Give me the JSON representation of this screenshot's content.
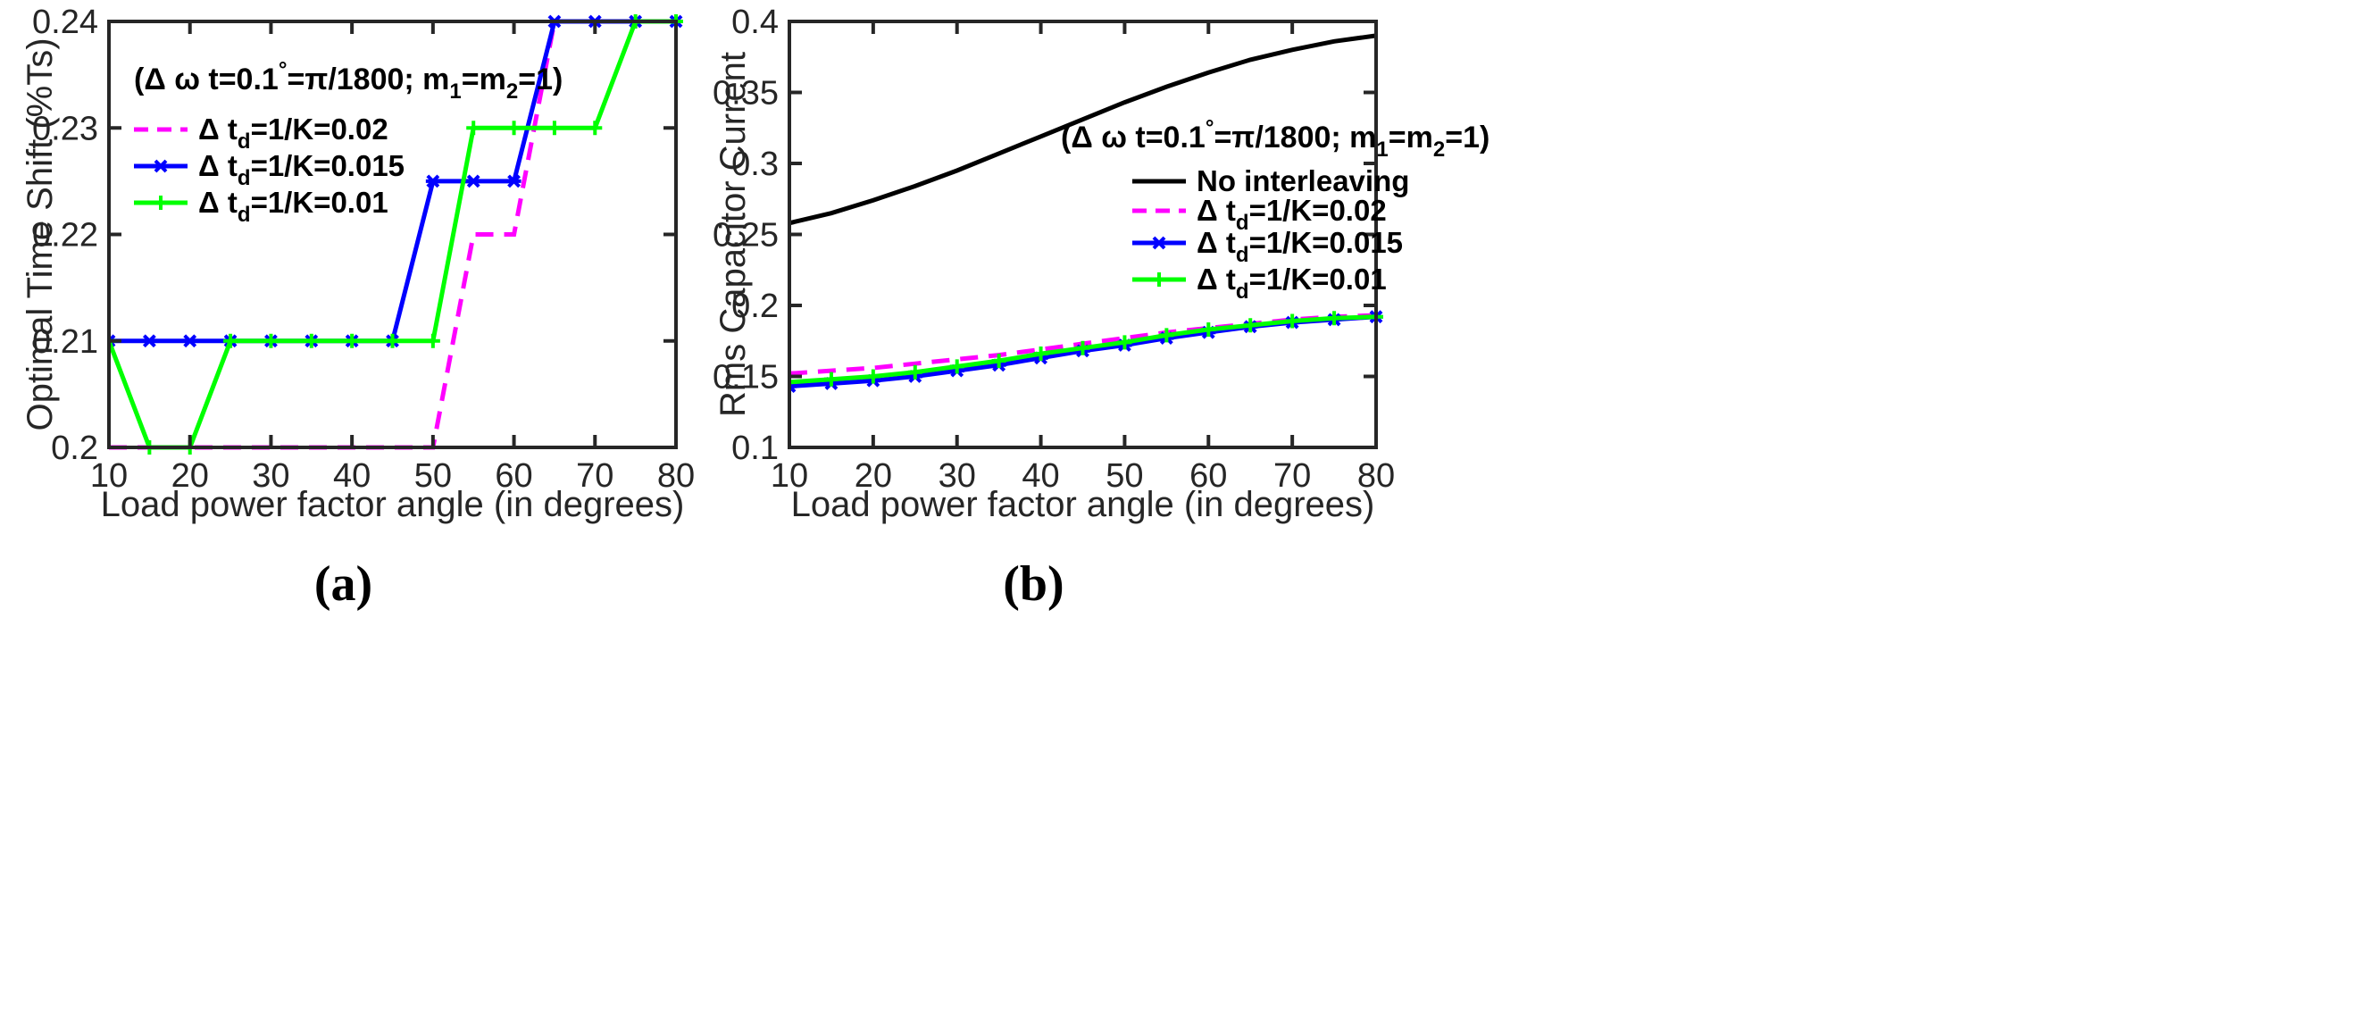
{
  "chart_data": [
    {
      "type": "line",
      "panel_label": "(a)",
      "title": "",
      "xlabel": "Load power factor angle (in degrees)",
      "ylabel": "Optimal Time Shift (%Ts)",
      "xlim": [
        10,
        80
      ],
      "ylim": [
        0.2,
        0.24
      ],
      "xticks": [
        10,
        20,
        30,
        40,
        50,
        60,
        70,
        80
      ],
      "yticks": [
        0.2,
        0.21,
        0.22,
        0.23,
        0.24
      ],
      "ytick_labels": [
        "0.2",
        "0.21",
        "0.22",
        "0.23",
        "0.24"
      ],
      "legend_title": {
        "pre": "(Δ ω t=0.1",
        "deg": "°",
        "mid": "=π/1800; m",
        "s1": "1",
        "eq": "=m",
        "s2": "2",
        "post": "=1)"
      },
      "legend_position": "top-left",
      "x": [
        10,
        15,
        20,
        25,
        30,
        35,
        40,
        45,
        50,
        55,
        60,
        65,
        70,
        75,
        80
      ],
      "series": [
        {
          "name": "Δ t_d=1/K=0.02",
          "label": {
            "pre": "Δ t",
            "sub": "d",
            "post": "=1/K=0.02"
          },
          "color": "#ff00ff",
          "style": "dashed",
          "marker": "none",
          "step": true,
          "values": [
            0.2,
            0.2,
            0.2,
            0.2,
            0.2,
            0.2,
            0.2,
            0.2,
            0.2,
            0.22,
            0.22,
            0.24,
            0.24,
            0.24,
            0.24
          ]
        },
        {
          "name": "Δ t_d=1/K=0.015",
          "label": {
            "pre": "Δ t",
            "sub": "d",
            "post": "=1/K=0.015"
          },
          "color": "#0000ff",
          "style": "solid",
          "marker": "star",
          "step": true,
          "values": [
            0.21,
            0.21,
            0.21,
            0.21,
            0.21,
            0.21,
            0.21,
            0.21,
            0.225,
            0.225,
            0.225,
            0.24,
            0.24,
            0.24,
            0.24
          ]
        },
        {
          "name": "Δ t_d=1/K=0.01",
          "label": {
            "pre": "Δ t",
            "sub": "d",
            "post": "=1/K=0.01"
          },
          "color": "#00ff00",
          "style": "solid",
          "marker": "plus",
          "step": true,
          "values": [
            0.21,
            0.2,
            0.2,
            0.21,
            0.21,
            0.21,
            0.21,
            0.21,
            0.21,
            0.23,
            0.23,
            0.23,
            0.23,
            0.24,
            0.24
          ]
        }
      ]
    },
    {
      "type": "line",
      "panel_label": "(b)",
      "title": "",
      "xlabel": "Load power factor angle (in degrees)",
      "ylabel": "Rms Capacitor Current",
      "xlim": [
        10,
        80
      ],
      "ylim": [
        0.1,
        0.4
      ],
      "xticks": [
        10,
        20,
        30,
        40,
        50,
        60,
        70,
        80
      ],
      "yticks": [
        0.1,
        0.15,
        0.2,
        0.25,
        0.3,
        0.35,
        0.4
      ],
      "ytick_labels": [
        "0.1",
        "0.15",
        "0.2",
        "0.25",
        "0.3",
        "0.35",
        "0.4"
      ],
      "legend_title": {
        "pre": "(Δ ω t=0.1",
        "deg": "°",
        "mid": "=π/1800; m",
        "s1": "1",
        "eq": "=m",
        "s2": "2",
        "post": "=1)"
      },
      "legend_position": "middle-right",
      "x": [
        10,
        15,
        20,
        25,
        30,
        35,
        40,
        45,
        50,
        55,
        60,
        65,
        70,
        75,
        80
      ],
      "series": [
        {
          "name": "No interleaving",
          "label": {
            "pre": "No interleaving",
            "sub": "",
            "post": ""
          },
          "color": "#000000",
          "style": "solid",
          "marker": "none",
          "step": false,
          "values": [
            0.258,
            0.265,
            0.274,
            0.284,
            0.295,
            0.307,
            0.319,
            0.331,
            0.343,
            0.354,
            0.364,
            0.373,
            0.38,
            0.386,
            0.39
          ]
        },
        {
          "name": "Δ t_d=1/K=0.02",
          "label": {
            "pre": "Δ t",
            "sub": "d",
            "post": "=1/K=0.02"
          },
          "color": "#ff00ff",
          "style": "dashed",
          "marker": "none",
          "step": false,
          "values": [
            0.152,
            0.154,
            0.156,
            0.159,
            0.162,
            0.165,
            0.169,
            0.173,
            0.177,
            0.181,
            0.184,
            0.187,
            0.19,
            0.192,
            0.193
          ]
        },
        {
          "name": "Δ t_d=1/K=0.015",
          "label": {
            "pre": "Δ t",
            "sub": "d",
            "post": "=1/K=0.015"
          },
          "color": "#0000ff",
          "style": "solid",
          "marker": "star",
          "step": false,
          "values": [
            0.143,
            0.145,
            0.147,
            0.15,
            0.154,
            0.158,
            0.163,
            0.168,
            0.172,
            0.177,
            0.181,
            0.185,
            0.188,
            0.19,
            0.192
          ]
        },
        {
          "name": "Δ t_d=1/K=0.01",
          "label": {
            "pre": "Δ t",
            "sub": "d",
            "post": "=1/K=0.01"
          },
          "color": "#00ff00",
          "style": "solid",
          "marker": "plus",
          "step": false,
          "values": [
            0.146,
            0.148,
            0.15,
            0.153,
            0.157,
            0.161,
            0.166,
            0.17,
            0.174,
            0.179,
            0.183,
            0.186,
            0.189,
            0.191,
            0.192
          ]
        }
      ]
    }
  ]
}
